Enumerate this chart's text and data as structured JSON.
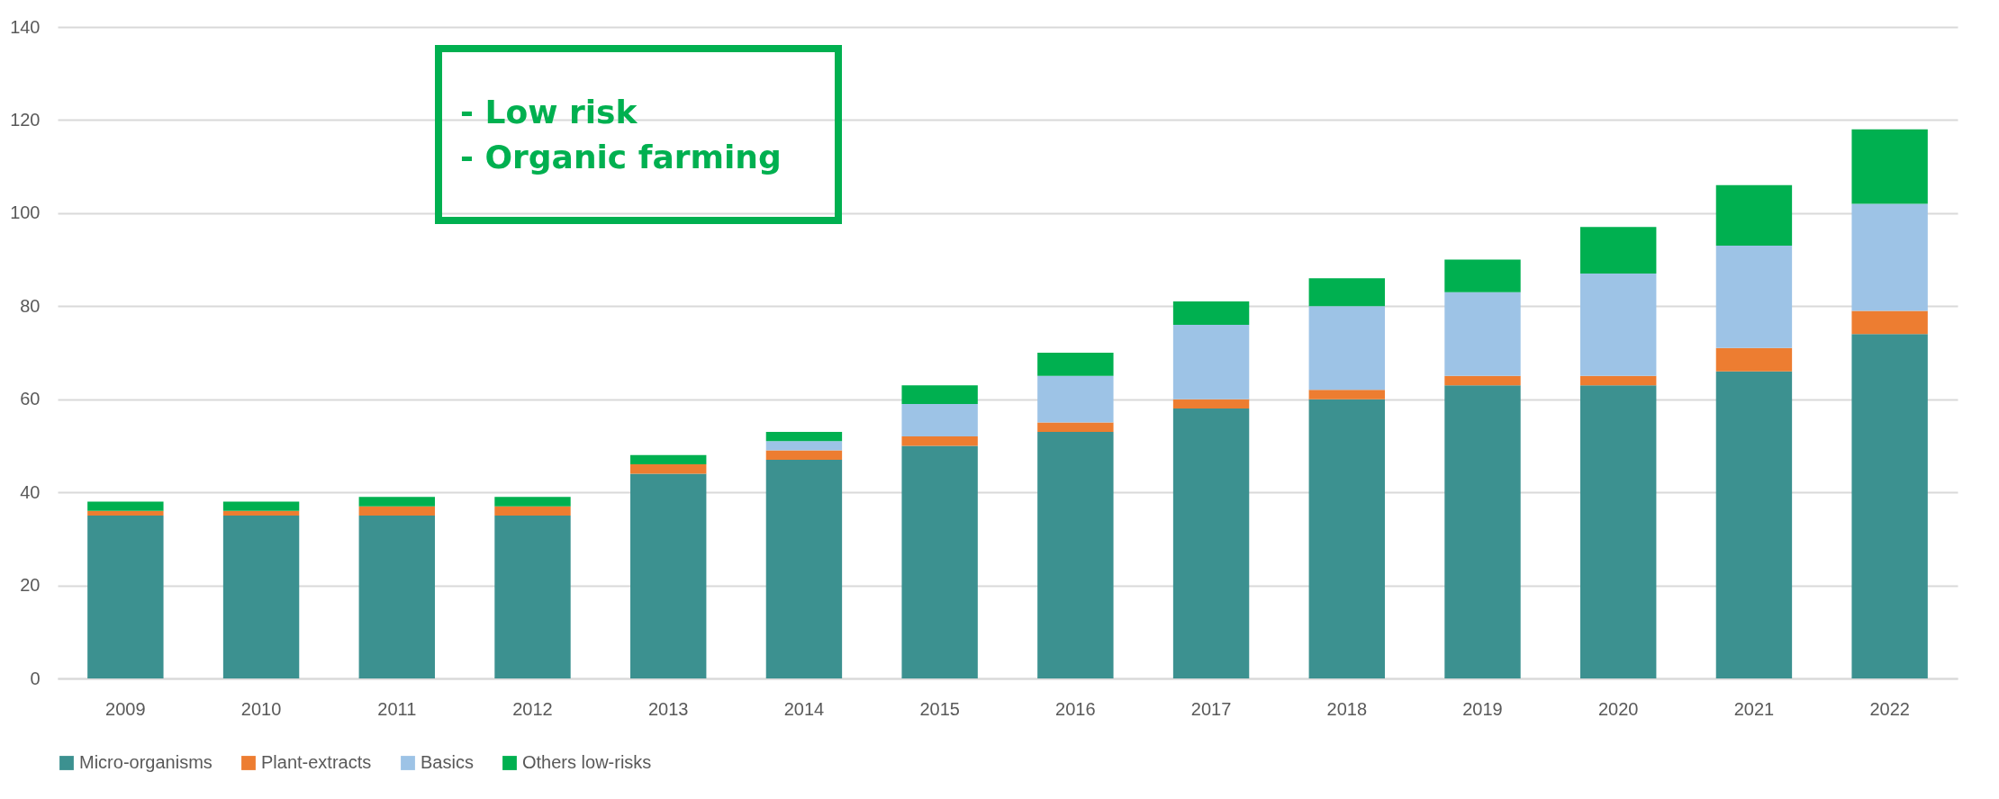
{
  "chart_data": {
    "type": "bar",
    "stacked": true,
    "categories": [
      "2009",
      "2010",
      "2011",
      "2012",
      "2013",
      "2014",
      "2015",
      "2016",
      "2017",
      "2018",
      "2019",
      "2020",
      "2021",
      "2022"
    ],
    "series": [
      {
        "name": "Micro-organisms",
        "color": "#3c9190",
        "values": [
          35,
          35,
          35,
          35,
          44,
          47,
          50,
          53,
          58,
          60,
          63,
          63,
          66,
          74
        ]
      },
      {
        "name": "Plant-extracts",
        "color": "#ed7d31",
        "values": [
          1,
          1,
          2,
          2,
          2,
          2,
          2,
          2,
          2,
          2,
          2,
          2,
          5,
          5
        ]
      },
      {
        "name": "Basics",
        "color": "#9dc3e6",
        "values": [
          0,
          0,
          0,
          0,
          0,
          2,
          7,
          10,
          16,
          18,
          18,
          22,
          22,
          23
        ]
      },
      {
        "name": "Others low-risks",
        "color": "#00b050",
        "values": [
          2,
          2,
          2,
          2,
          2,
          2,
          4,
          5,
          5,
          6,
          7,
          10,
          13,
          16
        ]
      }
    ],
    "ylim": [
      0,
      140
    ],
    "yticks": [
      0,
      20,
      40,
      60,
      80,
      100,
      120,
      140
    ],
    "grid": "y",
    "legend": "bottom",
    "annotations": [
      "- Low risk",
      "- Organic farming"
    ]
  }
}
